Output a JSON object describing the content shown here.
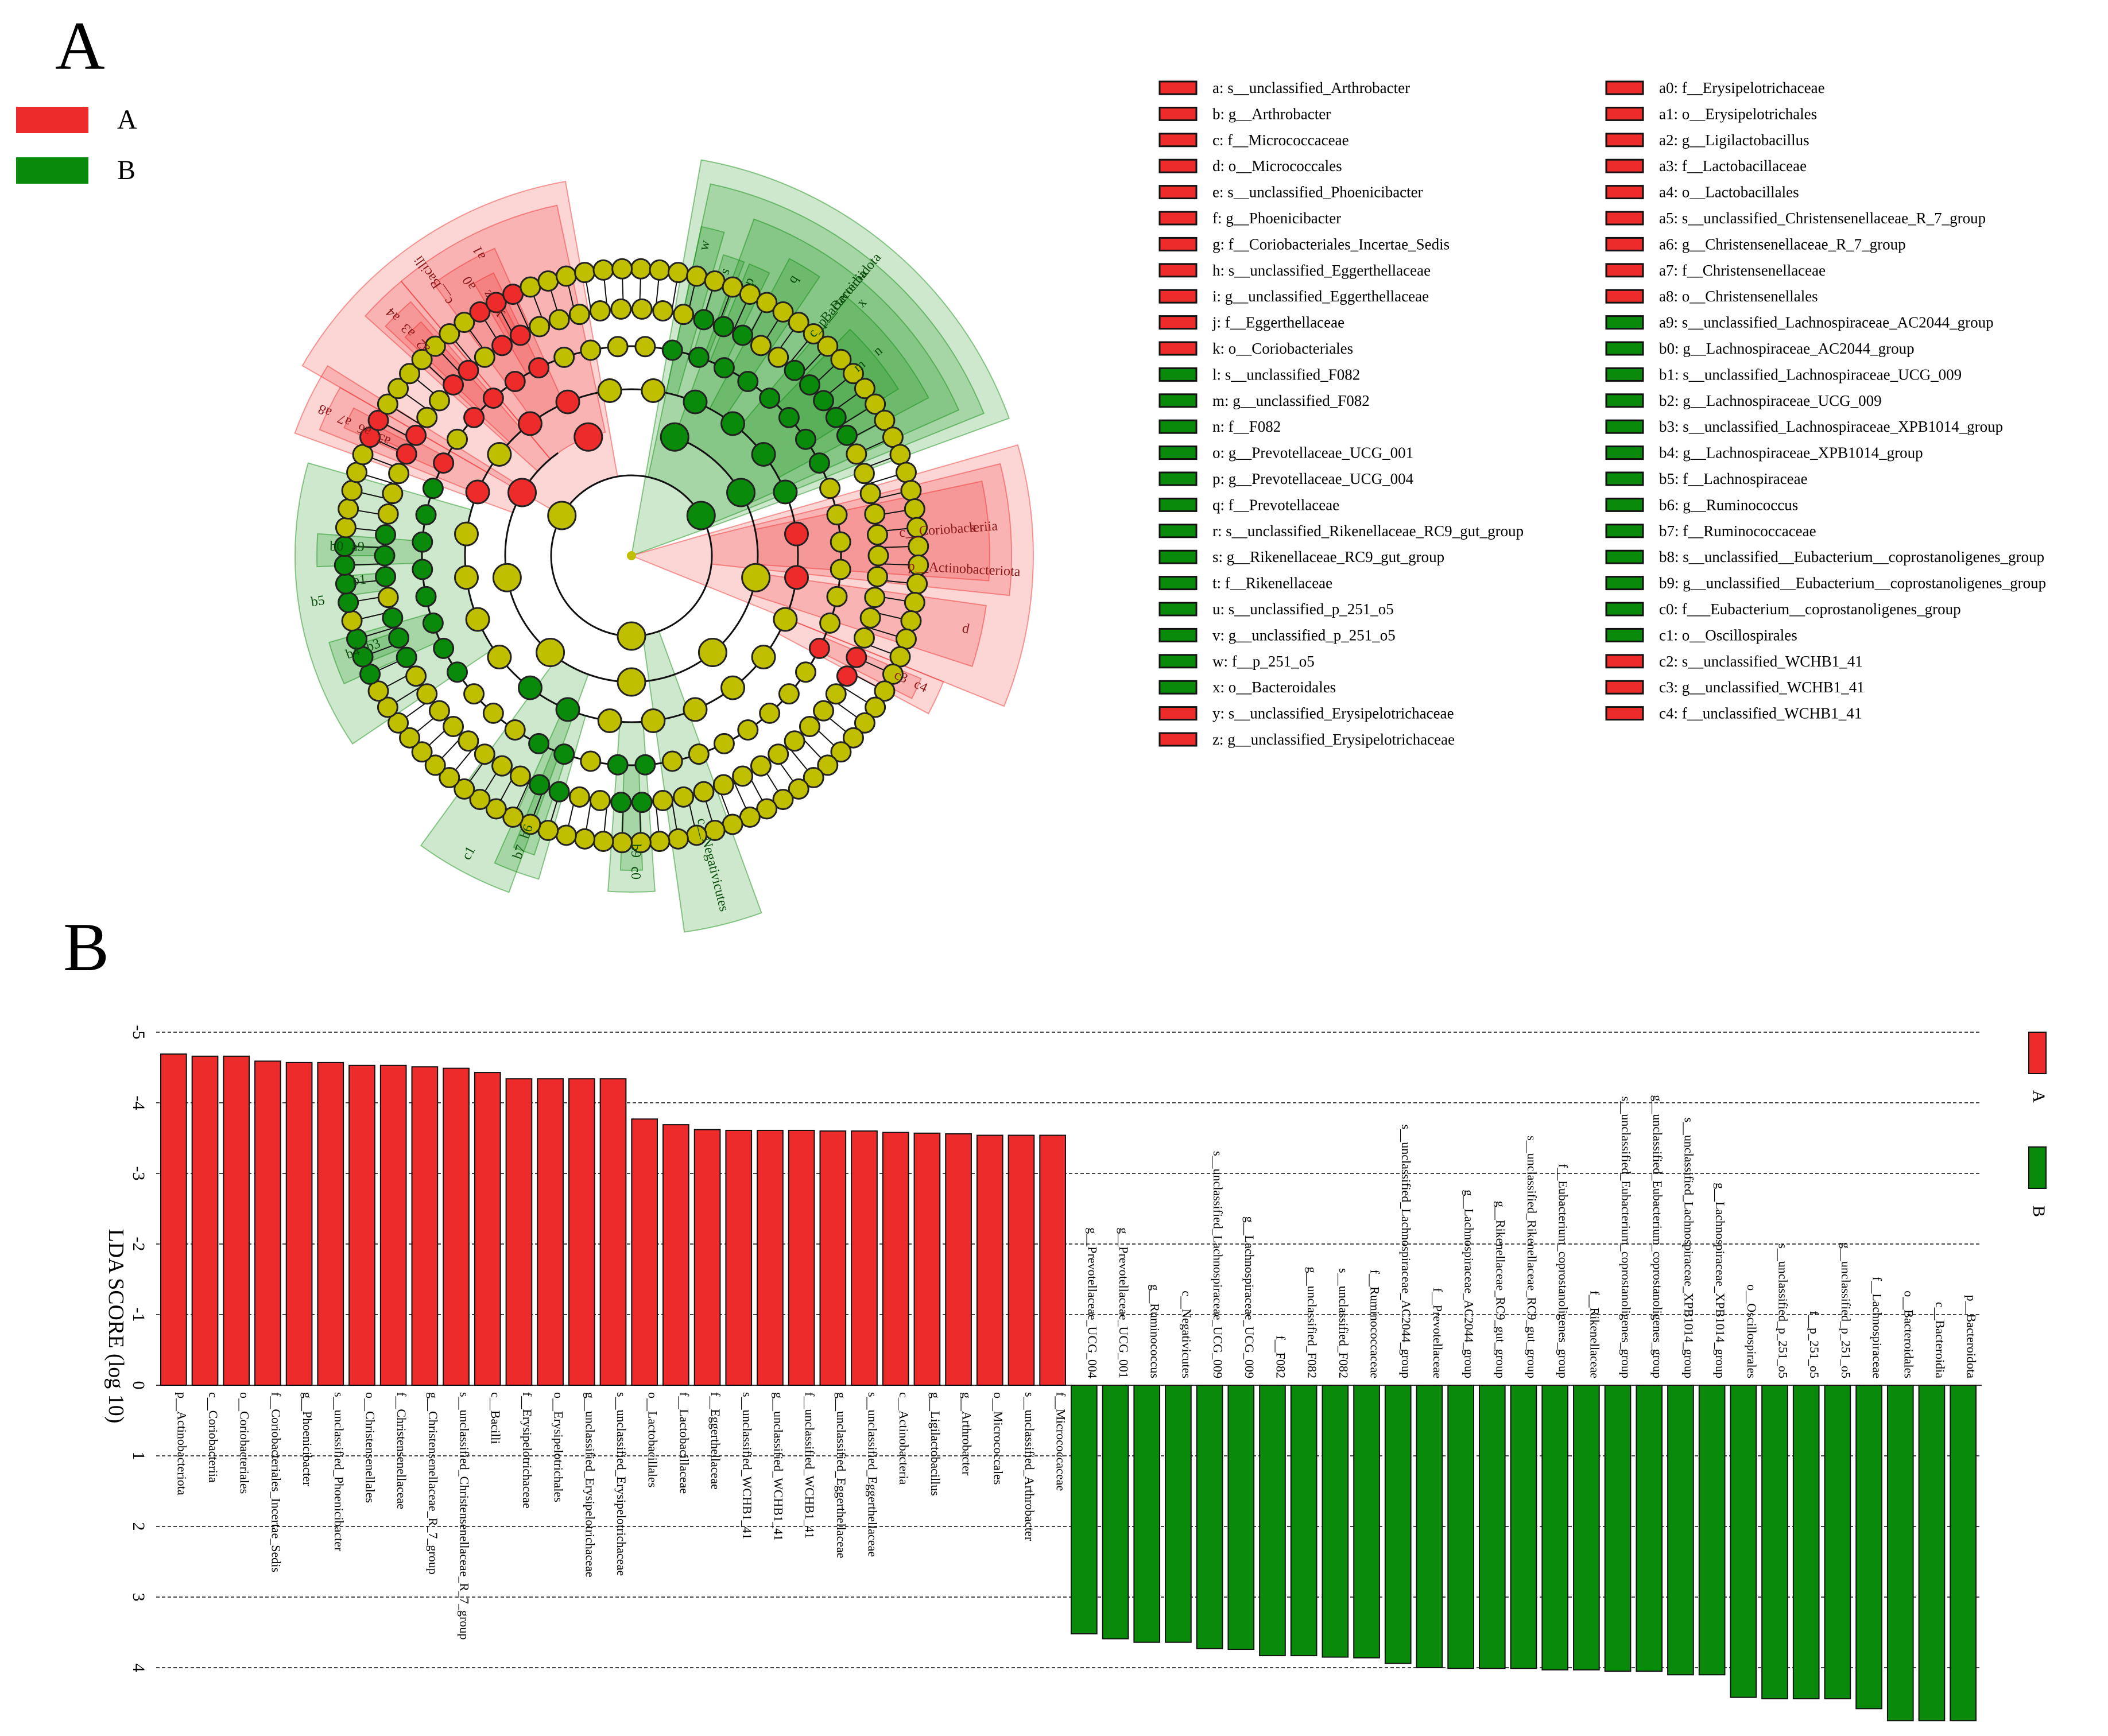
{
  "panels": {
    "a": "A",
    "b": "B"
  },
  "colors": {
    "A": "#ee2b2b",
    "B": "#0a8a0a",
    "neutral": "#bfbf00",
    "grid": "#444444"
  },
  "groups": [
    {
      "name": "A",
      "color": "#ee2b2b"
    },
    {
      "name": "B",
      "color": "#0a8a0a"
    }
  ],
  "cladogram": {
    "rings": 6,
    "shaded_clades": [
      {
        "label": "c__Bacilli",
        "group": "A",
        "start_deg": -60,
        "end_deg": -10,
        "depth": 2
      },
      {
        "label": "a1",
        "group": "A",
        "start_deg": -40,
        "end_deg": -12,
        "depth": 3
      },
      {
        "label": "a0",
        "group": "A",
        "start_deg": -36,
        "end_deg": -24,
        "depth": 4
      },
      {
        "label": "a4",
        "group": "A",
        "start_deg": -48,
        "end_deg": -40,
        "depth": 3
      },
      {
        "label": "a3",
        "group": "A",
        "start_deg": -47,
        "end_deg": -41,
        "depth": 4
      },
      {
        "label": "a2",
        "group": "A",
        "start_deg": -46,
        "end_deg": -42,
        "depth": 5
      },
      {
        "label": "z",
        "group": "A",
        "start_deg": -30,
        "end_deg": -26,
        "depth": 5
      },
      {
        "label": "y",
        "group": "A",
        "start_deg": -29,
        "end_deg": -27,
        "depth": 6
      },
      {
        "label": "a8",
        "group": "A",
        "start_deg": -70,
        "end_deg": -58,
        "depth": 3
      },
      {
        "label": "a7",
        "group": "A",
        "start_deg": -68,
        "end_deg": -60,
        "depth": 4
      },
      {
        "label": "a6",
        "group": "A",
        "start_deg": -66,
        "end_deg": -62,
        "depth": 5
      },
      {
        "label": "a5",
        "group": "A",
        "start_deg": -65,
        "end_deg": -63,
        "depth": 6
      },
      {
        "label": "p__Bacteroidota",
        "group": "B",
        "start_deg": 10,
        "end_deg": 70,
        "depth": 1
      },
      {
        "label": "c__Bacteroidia",
        "group": "B",
        "start_deg": 12,
        "end_deg": 68,
        "depth": 2
      },
      {
        "label": "x",
        "group": "B",
        "start_deg": 20,
        "end_deg": 66,
        "depth": 3
      },
      {
        "label": "n",
        "group": "B",
        "start_deg": 40,
        "end_deg": 62,
        "depth": 4
      },
      {
        "label": "m",
        "group": "B",
        "start_deg": 44,
        "end_deg": 58,
        "depth": 5
      },
      {
        "label": "q",
        "group": "B",
        "start_deg": 28,
        "end_deg": 34,
        "depth": 4
      },
      {
        "label": "p",
        "group": "B",
        "start_deg": 22,
        "end_deg": 26,
        "depth": 5
      },
      {
        "label": "s",
        "group": "B",
        "start_deg": 17,
        "end_deg": 21,
        "depth": 5
      },
      {
        "label": "w",
        "group": "B",
        "start_deg": 12,
        "end_deg": 16,
        "depth": 4
      },
      {
        "label": "p__Actinobacteriota",
        "group": "A",
        "start_deg": 74,
        "end_deg": 112,
        "depth": 1
      },
      {
        "label": "c__Coriobacteriia",
        "group": "A",
        "start_deg": 76,
        "end_deg": 96,
        "depth": 2
      },
      {
        "label": "k",
        "group": "A",
        "start_deg": 78,
        "end_deg": 94,
        "depth": 3
      },
      {
        "label": "d",
        "group": "A",
        "start_deg": 98,
        "end_deg": 108,
        "depth": 3
      },
      {
        "label": "c4",
        "group": "A",
        "start_deg": 112,
        "end_deg": 118,
        "depth": 4
      },
      {
        "label": "c3",
        "group": "A",
        "start_deg": 113,
        "end_deg": 117,
        "depth": 5
      },
      {
        "label": "c__Negativicutes",
        "group": "B",
        "start_deg": 160,
        "end_deg": 172,
        "depth": 2
      },
      {
        "label": "c0",
        "group": "B",
        "start_deg": 176,
        "end_deg": 184,
        "depth": 4
      },
      {
        "label": "b9",
        "group": "B",
        "start_deg": 178,
        "end_deg": 182,
        "depth": 5
      },
      {
        "label": "b7",
        "group": "B",
        "start_deg": 196,
        "end_deg": 204,
        "depth": 4
      },
      {
        "label": "b6",
        "group": "B",
        "start_deg": 198,
        "end_deg": 202,
        "depth": 5
      },
      {
        "label": "c1",
        "group": "B",
        "start_deg": 200,
        "end_deg": 216,
        "depth": 3
      },
      {
        "label": "b5",
        "group": "B",
        "start_deg": 236,
        "end_deg": 286,
        "depth": 4
      },
      {
        "label": "b4",
        "group": "B",
        "start_deg": 246,
        "end_deg": 254,
        "depth": 5
      },
      {
        "label": "b3",
        "group": "B",
        "start_deg": 248,
        "end_deg": 252,
        "depth": 6
      },
      {
        "label": "b1",
        "group": "B",
        "start_deg": 262,
        "end_deg": 266,
        "depth": 6
      },
      {
        "label": "b0",
        "group": "B",
        "start_deg": 268,
        "end_deg": 274,
        "depth": 5
      },
      {
        "label": "a9",
        "group": "B",
        "start_deg": 270,
        "end_deg": 272,
        "depth": 6
      }
    ],
    "key_col1": [
      {
        "code": "a",
        "name": "s__unclassified_Arthrobacter",
        "group": "A"
      },
      {
        "code": "b",
        "name": "g__Arthrobacter",
        "group": "A"
      },
      {
        "code": "c",
        "name": "f__Micrococcaceae",
        "group": "A"
      },
      {
        "code": "d",
        "name": "o__Micrococcales",
        "group": "A"
      },
      {
        "code": "e",
        "name": "s__unclassified_Phoenicibacter",
        "group": "A"
      },
      {
        "code": "f",
        "name": "g__Phoenicibacter",
        "group": "A"
      },
      {
        "code": "g",
        "name": "f__Coriobacteriales_Incertae_Sedis",
        "group": "A"
      },
      {
        "code": "h",
        "name": "s__unclassified_Eggerthellaceae",
        "group": "A"
      },
      {
        "code": "i",
        "name": "g__unclassified_Eggerthellaceae",
        "group": "A"
      },
      {
        "code": "j",
        "name": "f__Eggerthellaceae",
        "group": "A"
      },
      {
        "code": "k",
        "name": "o__Coriobacteriales",
        "group": "A"
      },
      {
        "code": "l",
        "name": "s__unclassified_F082",
        "group": "B"
      },
      {
        "code": "m",
        "name": "g__unclassified_F082",
        "group": "B"
      },
      {
        "code": "n",
        "name": "f__F082",
        "group": "B"
      },
      {
        "code": "o",
        "name": "g__Prevotellaceae_UCG_001",
        "group": "B"
      },
      {
        "code": "p",
        "name": "g__Prevotellaceae_UCG_004",
        "group": "B"
      },
      {
        "code": "q",
        "name": "f__Prevotellaceae",
        "group": "B"
      },
      {
        "code": "r",
        "name": "s__unclassified_Rikenellaceae_RC9_gut_group",
        "group": "B"
      },
      {
        "code": "s",
        "name": "g__Rikenellaceae_RC9_gut_group",
        "group": "B"
      },
      {
        "code": "t",
        "name": "f__Rikenellaceae",
        "group": "B"
      },
      {
        "code": "u",
        "name": "s__unclassified_p_251_o5",
        "group": "B"
      },
      {
        "code": "v",
        "name": "g__unclassified_p_251_o5",
        "group": "B"
      },
      {
        "code": "w",
        "name": "f__p_251_o5",
        "group": "B"
      },
      {
        "code": "x",
        "name": "o__Bacteroidales",
        "group": "B"
      },
      {
        "code": "y",
        "name": "s__unclassified_Erysipelotrichaceae",
        "group": "A"
      },
      {
        "code": "z",
        "name": "g__unclassified_Erysipelotrichaceae",
        "group": "A"
      }
    ],
    "key_col2": [
      {
        "code": "a0",
        "name": "f__Erysipelotrichaceae",
        "group": "A"
      },
      {
        "code": "a1",
        "name": "o__Erysipelotrichales",
        "group": "A"
      },
      {
        "code": "a2",
        "name": "g__Ligilactobacillus",
        "group": "A"
      },
      {
        "code": "a3",
        "name": "f__Lactobacillaceae",
        "group": "A"
      },
      {
        "code": "a4",
        "name": "o__Lactobacillales",
        "group": "A"
      },
      {
        "code": "a5",
        "name": "s__unclassified_Christensenellaceae_R_7_group",
        "group": "A"
      },
      {
        "code": "a6",
        "name": "g__Christensenellaceae_R_7_group",
        "group": "A"
      },
      {
        "code": "a7",
        "name": "f__Christensenellaceae",
        "group": "A"
      },
      {
        "code": "a8",
        "name": "o__Christensenellales",
        "group": "A"
      },
      {
        "code": "a9",
        "name": "s__unclassified_Lachnospiraceae_AC2044_group",
        "group": "B"
      },
      {
        "code": "b0",
        "name": "g__Lachnospiraceae_AC2044_group",
        "group": "B"
      },
      {
        "code": "b1",
        "name": "s__unclassified_Lachnospiraceae_UCG_009",
        "group": "B"
      },
      {
        "code": "b2",
        "name": "g__Lachnospiraceae_UCG_009",
        "group": "B"
      },
      {
        "code": "b3",
        "name": "s__unclassified_Lachnospiraceae_XPB1014_group",
        "group": "B"
      },
      {
        "code": "b4",
        "name": "g__Lachnospiraceae_XPB1014_group",
        "group": "B"
      },
      {
        "code": "b5",
        "name": "f__Lachnospiraceae",
        "group": "B"
      },
      {
        "code": "b6",
        "name": "g__Ruminococcus",
        "group": "B"
      },
      {
        "code": "b7",
        "name": "f__Ruminococcaceae",
        "group": "B"
      },
      {
        "code": "b8",
        "name": "s__unclassified__Eubacterium__coprostanoligenes_group",
        "group": "B"
      },
      {
        "code": "b9",
        "name": "g__unclassified__Eubacterium__coprostanoligenes_group",
        "group": "B"
      },
      {
        "code": "c0",
        "name": "f___Eubacterium__coprostanoligenes_group",
        "group": "B"
      },
      {
        "code": "c1",
        "name": "o__Oscillospirales",
        "group": "B"
      },
      {
        "code": "c2",
        "name": "s__unclassified_WCHB1_41",
        "group": "A"
      },
      {
        "code": "c3",
        "name": "g__unclassified_WCHB1_41",
        "group": "A"
      },
      {
        "code": "c4",
        "name": "f__unclassified_WCHB1_41",
        "group": "A"
      }
    ]
  },
  "chart_data": {
    "type": "bar",
    "orientation": "vertical",
    "ylabel": "LDA SCORE (log 10)",
    "ylim": [
      -5,
      5
    ],
    "y_ticks": [
      -5,
      -4,
      -3,
      -2,
      -1,
      0,
      1,
      2,
      3,
      4
    ],
    "grid": true,
    "legend": [
      {
        "name": "A",
        "color": "#ee2b2b"
      },
      {
        "name": "B",
        "color": "#0a8a0a"
      }
    ],
    "series": [
      {
        "name": "A",
        "color": "#ee2b2b",
        "categories": [
          "p__Actinobacteriota",
          "c__Coriobacteriia",
          "o__Coriobacteriales",
          "f__Coriobacteriales_Incertae_Sedis",
          "g__Phoenicibacter",
          "s__unclassified_Phoenicibacter",
          "o__Christensenellales",
          "f__Christensenellaceae",
          "g__Christensenellaceae_R_7_group",
          "s__unclassified_Christensenellaceae_R_7_group",
          "c__Bacilli",
          "f__Erysipelotrichaceae",
          "o__Erysipelotrichales",
          "g__unclassified_Erysipelotrichaceae",
          "s__unclassified_Erysipelotrichaceae",
          "o__Lactobacillales",
          "f__Lactobacillaceae",
          "f__Eggerthellaceae",
          "s__unclassified_WCHB1_41",
          "g__unclassified_WCHB1_41",
          "f__unclassified_WCHB1_41",
          "g__unclassified_Eggerthellaceae",
          "s__unclassified_Eggerthellaceae",
          "c__Actinobacteria",
          "g__Ligilactobacillus",
          "g__Arthrobacter",
          "o__Micrococcales",
          "s__unclassified_Arthrobacter",
          "f__Micrococcaceae"
        ],
        "values": [
          -4.69,
          -4.66,
          -4.66,
          -4.59,
          -4.57,
          -4.57,
          -4.53,
          -4.53,
          -4.51,
          -4.49,
          -4.43,
          -4.34,
          -4.34,
          -4.34,
          -4.34,
          -3.77,
          -3.69,
          -3.62,
          -3.61,
          -3.61,
          -3.61,
          -3.6,
          -3.6,
          -3.58,
          -3.57,
          -3.56,
          -3.54,
          -3.54,
          -3.54
        ]
      },
      {
        "name": "B",
        "color": "#0a8a0a",
        "categories": [
          "g__Prevotellaceae_UCG_004",
          "g__Prevotellaceae_UCG_001",
          "g__Ruminococcus",
          "c__Negativicutes",
          "s__unclassified_Lachnospiraceae_UCG_009",
          "g__Lachnospiraceae_UCG_009",
          "f__F082",
          "g__unclassified_F082",
          "s__unclassified_F082",
          "f__Ruminococcaceae",
          "s__unclassified_Lachnospiraceae_AC2044_group",
          "f__Prevotellaceae",
          "g__Lachnospiraceae_AC2044_group",
          "g__Rikenellaceae_RC9_gut_group",
          "s__unclassified_Rikenellaceae_RC9_gut_group",
          "f__Eubacterium_coprostanoligenes_group",
          "f__Rikenellaceae",
          "s__unclassified_Eubacterium_coprostanoligenes_group",
          "g__unclassified_Eubacterium_coprostanoligenes_group",
          "s__unclassified_Lachnospiraceae_XPB1014_group",
          "g__Lachnospiraceae_XPB1014_group",
          "o__Oscillospirales",
          "s__unclassified_p_251_o5",
          "f__p_251_o5",
          "g__unclassified_p_251_o5",
          "f__Lachnospiraceae",
          "o__Bacteroidales",
          "c__Bacteroidia",
          "p__Bacteroidota"
        ],
        "values": [
          3.52,
          3.59,
          3.64,
          3.64,
          3.73,
          3.74,
          3.83,
          3.83,
          3.85,
          3.86,
          3.94,
          4.0,
          4.01,
          4.01,
          4.01,
          4.03,
          4.03,
          4.05,
          4.05,
          4.1,
          4.1,
          4.42,
          4.44,
          4.44,
          4.44,
          4.58,
          4.75,
          4.75,
          4.75
        ]
      }
    ]
  }
}
